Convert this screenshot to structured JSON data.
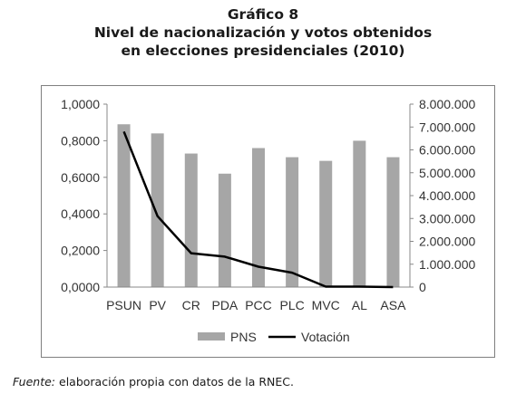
{
  "figure": {
    "label": "Gráfico 8",
    "title_line1": "Nivel de nacionalización y votos obtenidos",
    "title_line2": "en elecciones presidenciales (2010)",
    "source_prefix": "Fuente:",
    "source_text": " elaboración propia con datos de la RNEC."
  },
  "colors": {
    "bar": "#a6a6a6",
    "line": "#000000",
    "frame": "#7f7f7f",
    "text": "#333333"
  },
  "chart_data": {
    "type": "bar",
    "categories": [
      "PSUN",
      "PV",
      "CR",
      "PDA",
      "PCC",
      "PLC",
      "MVC",
      "AL",
      "ASA"
    ],
    "series": [
      {
        "name": "PNS",
        "type": "bar",
        "axis": "left",
        "values": [
          0.89,
          0.84,
          0.73,
          0.62,
          0.76,
          0.71,
          0.69,
          0.8,
          0.71
        ]
      },
      {
        "name": "Votación",
        "type": "line",
        "axis": "right",
        "values": [
          6800000,
          3100000,
          1480000,
          1330000,
          890000,
          630000,
          20000,
          20000,
          0
        ]
      }
    ],
    "y_left": {
      "min": 0,
      "max": 1,
      "step": 0.2,
      "ticks": [
        "0,0000",
        "0,2000",
        "0,4000",
        "0,6000",
        "0,8000",
        "1,0000"
      ]
    },
    "y_right": {
      "min": 0,
      "max": 8000000,
      "step": 1000000,
      "ticks": [
        "0",
        "1.000.000",
        "2.000.000",
        "3.000.000",
        "4.000.000",
        "5.000.000",
        "6.000.000",
        "7.000.000",
        "8.000.000"
      ]
    },
    "legend": [
      "PNS",
      "Votación"
    ],
    "legend_position": "bottom",
    "grid": false
  }
}
